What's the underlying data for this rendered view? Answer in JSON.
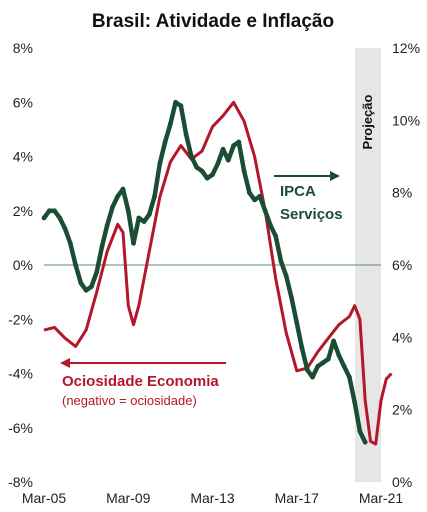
{
  "chart_data": {
    "type": "line",
    "title": "Brasil: Atividade e Inflação",
    "x_tick_labels": [
      "Mar-05",
      "Mar-09",
      "Mar-13",
      "Mar-17",
      "Mar-21"
    ],
    "y_left": {
      "ylim": [
        -8,
        8
      ],
      "tick_labels": [
        "8%",
        "6%",
        "4%",
        "2%",
        "0%",
        "-2%",
        "-4%",
        "-6%",
        "-8%"
      ]
    },
    "y_right": {
      "ylim": [
        0,
        12
      ],
      "tick_labels": [
        "12%",
        "10%",
        "8%",
        "6%",
        "4%",
        "2%",
        "0%"
      ]
    },
    "projection_label": "Projeção",
    "annotations": {
      "ipca": [
        "IPCA",
        "Serviços"
      ],
      "ociosidade": "Ociosidade Economia",
      "ociosidade_sub": "(negativo = ociosidade)"
    },
    "colors": {
      "ipca": "#1a4d33",
      "ociosidade": "#b5172a",
      "projection_band": "#e6e6e6",
      "zero_line": "#5b8a7a"
    },
    "series": [
      {
        "key": "ociosidade",
        "axis": "left",
        "x": [
          2005.0,
          2005.5,
          2006.0,
          2006.5,
          2007.0,
          2007.5,
          2008.0,
          2008.5,
          2008.75,
          2009.0,
          2009.25,
          2009.5,
          2010.0,
          2010.5,
          2011.0,
          2011.5,
          2012.0,
          2012.5,
          2013.0,
          2013.5,
          2014.0,
          2014.5,
          2015.0,
          2015.5,
          2016.0,
          2016.5,
          2017.0,
          2017.5,
          2018.0,
          2018.5,
          2019.0,
          2019.5,
          2019.75,
          2020.0,
          2020.25,
          2020.5,
          2020.75,
          2021.0,
          2021.25,
          2021.5
        ],
        "y": [
          -2.4,
          -2.3,
          -2.7,
          -3.0,
          -2.4,
          -1.0,
          0.5,
          1.5,
          1.2,
          -1.5,
          -2.2,
          -1.5,
          0.5,
          2.5,
          3.8,
          4.4,
          3.9,
          4.2,
          5.1,
          5.5,
          6.0,
          5.3,
          4.0,
          2.0,
          -0.5,
          -2.5,
          -3.9,
          -3.8,
          -3.2,
          -2.7,
          -2.2,
          -1.9,
          -1.5,
          -2.0,
          -5.0,
          -6.5,
          -6.6,
          -5.0,
          -4.2,
          -4.0
        ]
      },
      {
        "key": "ipca",
        "axis": "right",
        "x": [
          2005.0,
          2005.25,
          2005.5,
          2005.75,
          2006.0,
          2006.25,
          2006.5,
          2006.75,
          2007.0,
          2007.25,
          2007.5,
          2007.75,
          2008.0,
          2008.25,
          2008.5,
          2008.75,
          2009.0,
          2009.25,
          2009.5,
          2009.75,
          2010.0,
          2010.25,
          2010.5,
          2010.75,
          2011.0,
          2011.25,
          2011.5,
          2011.75,
          2012.0,
          2012.25,
          2012.5,
          2012.75,
          2013.0,
          2013.25,
          2013.5,
          2013.75,
          2014.0,
          2014.25,
          2014.5,
          2014.75,
          2015.0,
          2015.25,
          2015.5,
          2015.75,
          2016.0,
          2016.25,
          2016.5,
          2016.75,
          2017.0,
          2017.25,
          2017.5,
          2017.75,
          2018.0,
          2018.25,
          2018.5,
          2018.75,
          2019.0,
          2019.25,
          2019.5,
          2019.75,
          2020.0,
          2020.25
        ],
        "y": [
          7.3,
          7.5,
          7.5,
          7.3,
          7.0,
          6.6,
          6.0,
          5.5,
          5.3,
          5.4,
          5.8,
          6.5,
          7.1,
          7.6,
          7.9,
          8.1,
          7.5,
          6.6,
          7.3,
          7.2,
          7.4,
          7.9,
          8.8,
          9.4,
          9.9,
          10.5,
          10.4,
          9.6,
          9.0,
          8.7,
          8.6,
          8.4,
          8.5,
          8.8,
          9.2,
          8.9,
          9.3,
          9.4,
          8.6,
          8.0,
          7.8,
          7.9,
          7.5,
          7.1,
          6.8,
          6.1,
          5.7,
          5.1,
          4.4,
          3.7,
          3.1,
          2.9,
          3.2,
          3.3,
          3.4,
          3.9,
          3.5,
          3.2,
          2.9,
          2.2,
          1.4,
          1.1
        ]
      }
    ]
  }
}
